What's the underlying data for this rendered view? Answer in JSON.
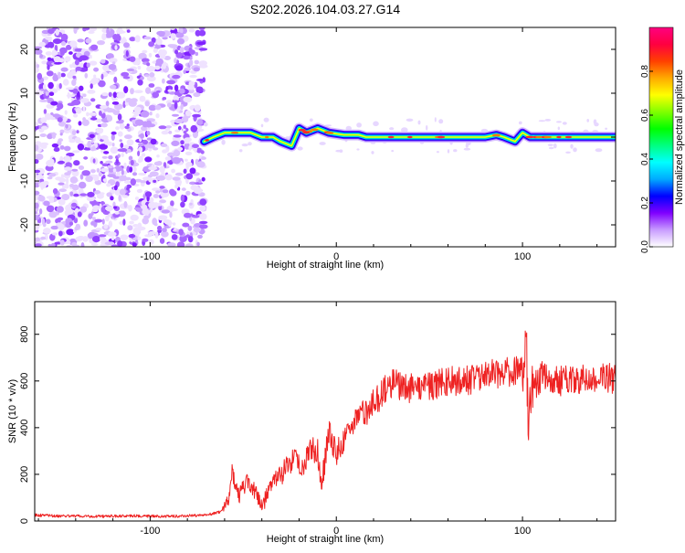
{
  "title": "S202.2026.104.03.27.G14",
  "chart_data": [
    {
      "type": "heatmap",
      "name": "spectrogram",
      "xlabel": "Height of straight line (km)",
      "ylabel": "Frequency (Hz)",
      "xlim": [
        -162,
        150
      ],
      "ylim": [
        -25,
        25
      ],
      "xticks": [
        -100,
        0,
        100
      ],
      "yticks": [
        -20,
        -10,
        0,
        10,
        20
      ],
      "xtick_labels": [
        "-100",
        "0",
        "100"
      ],
      "ytick_labels": [
        "-20",
        "-10",
        "0",
        "10",
        "20"
      ],
      "noise_region_x": [
        -162,
        -71
      ],
      "tone": {
        "x": [
          -71,
          -66,
          -60,
          -52,
          -46,
          -40,
          -34,
          -30,
          -24,
          -20,
          -16,
          -10,
          -4,
          4,
          12,
          16,
          30,
          50,
          70,
          80,
          86,
          90,
          96,
          100,
          104,
          120,
          150
        ],
        "f": [
          -1,
          0,
          1,
          1,
          1,
          0,
          0,
          -1,
          -2,
          2,
          1,
          2,
          1,
          0.5,
          0.5,
          0,
          0,
          0,
          0,
          0,
          0.5,
          0,
          -1,
          1,
          0,
          0,
          0
        ]
      }
    },
    {
      "type": "colorbar",
      "name": "amplitude-colorbar",
      "label": "Normalized spectral amplitude",
      "range": [
        0,
        1
      ],
      "ticks": [
        0.0,
        0.2,
        0.4,
        0.6,
        0.8
      ],
      "tick_labels": [
        "0.0",
        "0.2",
        "0.4",
        "0.6",
        "0.8"
      ],
      "colors": [
        "#ffffff",
        "#c89cff",
        "#8000ff",
        "#0000ff",
        "#00aaff",
        "#00ffff",
        "#00ff80",
        "#00ff00",
        "#80ff00",
        "#ffff00",
        "#ffaa00",
        "#ff4000",
        "#ff0040",
        "#ff0080"
      ]
    },
    {
      "type": "line",
      "name": "snr-plot",
      "xlabel": "Height of straight line (km)",
      "ylabel": "SNR (10 * v/v)",
      "xlim": [
        -162,
        150
      ],
      "ylim": [
        0,
        940
      ],
      "xticks": [
        -100,
        0,
        100
      ],
      "yticks": [
        0,
        200,
        400,
        600,
        800
      ],
      "xtick_labels": [
        "-100",
        "0",
        "100"
      ],
      "ytick_labels": [
        "0",
        "200",
        "400",
        "600",
        "800"
      ],
      "color": "#ee2222",
      "series": [
        {
          "name": "SNR",
          "x": [
            -162,
            -150,
            -130,
            -110,
            -90,
            -70,
            -62,
            -58,
            -56,
            -52,
            -48,
            -44,
            -40,
            -34,
            -28,
            -22,
            -18,
            -14,
            -10,
            -8,
            -4,
            0,
            10,
            20,
            26,
            30,
            40,
            50,
            60,
            70,
            80,
            90,
            100,
            102,
            103,
            105,
            110,
            120,
            130,
            140,
            150
          ],
          "y": [
            25,
            22,
            20,
            22,
            20,
            25,
            40,
            100,
            200,
            110,
            170,
            130,
            60,
            170,
            220,
            260,
            230,
            310,
            300,
            150,
            380,
            290,
            430,
            500,
            560,
            590,
            570,
            580,
            600,
            600,
            620,
            640,
            640,
            780,
            430,
            560,
            620,
            600,
            610,
            620,
            610
          ]
        }
      ]
    }
  ]
}
